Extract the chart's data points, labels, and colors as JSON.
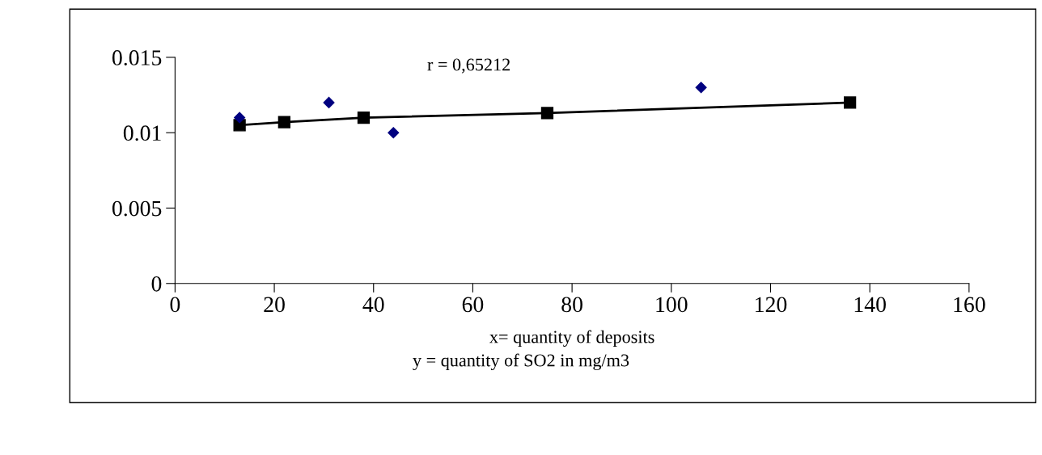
{
  "chart_data": {
    "type": "scatter",
    "series": [
      {
        "color": "#000080",
        "marker": "diamond",
        "x": [
          13,
          31,
          44,
          106
        ],
        "values": [
          0.011,
          0.012,
          0.01,
          0.013
        ]
      },
      {
        "type": "line",
        "color": "#000000",
        "marker": "square",
        "line_style": "solid",
        "x": [
          13,
          22,
          38,
          75,
          136
        ],
        "values": [
          0.0105,
          0.0107,
          0.011,
          0.0113,
          0.012
        ]
      }
    ],
    "xlabel": "x= quantity of deposits",
    "annotations": [
      "y = quantity of SO2 in mg/m3",
      "r = 0,65212"
    ],
    "xlim": [
      0,
      160
    ],
    "xticks": [
      0,
      20,
      40,
      60,
      80,
      100,
      120,
      140,
      160
    ],
    "ylim": [
      0,
      0.015
    ],
    "yticks": [
      0,
      0.005,
      0.01,
      0.015
    ],
    "grid": false,
    "legend": false
  }
}
